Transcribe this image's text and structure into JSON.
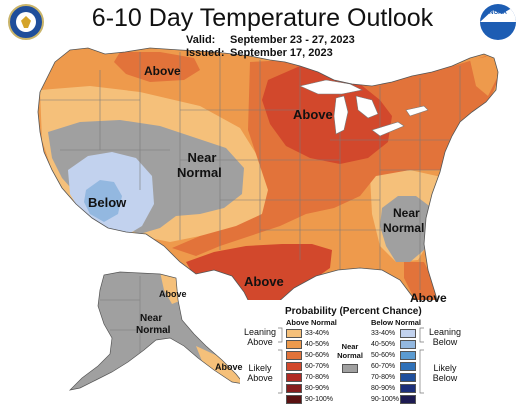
{
  "header": {
    "title": "6-10 Day Temperature Outlook",
    "valid_label": "Valid:",
    "valid_value": "September 23 - 27, 2023",
    "issued_label": "Issued:",
    "issued_value": "September 17, 2023",
    "left_logo_icon": "doc-seal-icon",
    "right_logo_icon": "noaa-logo-icon",
    "right_logo_text": "NOAA"
  },
  "colors": {
    "above_33_40": "#f5c07a",
    "above_40_50": "#ee9a4c",
    "above_50_60": "#e2733a",
    "above_60_70": "#d2482c",
    "above_70_80": "#b02a24",
    "above_80_90": "#861d1d",
    "above_90_100": "#5a1212",
    "near_normal": "#a0a0a0",
    "below_33_40": "#c2d2ee",
    "below_40_50": "#93b8e0",
    "below_50_60": "#5b9bd1",
    "below_60_70": "#2f71b8",
    "below_70_80": "#1f4f9c",
    "below_80_90": "#1c2f7a",
    "below_90_100": "#1d1b52",
    "water": "#ffffff",
    "boundary": "#7a7a7a"
  },
  "map_labels": {
    "northwest_above": "Above",
    "great_lakes_above": "Above",
    "west_near_normal_1": "Near",
    "west_near_normal_2": "Normal",
    "southwest_below": "Below",
    "southeast_near_normal_1": "Near",
    "southeast_near_normal_2": "Normal",
    "texas_above": "Above",
    "florida_above": "Above",
    "alaska_above_north": "Above",
    "alaska_near_normal_1": "Near",
    "alaska_near_normal_2": "Normal",
    "alaska_above_south": "Above"
  },
  "legend": {
    "title": "Probability (Percent Chance)",
    "above_header": "Above Normal",
    "below_header": "Below Normal",
    "near_normal_label_1": "Near",
    "near_normal_label_2": "Normal",
    "leaning_above_1": "Leaning",
    "leaning_above_2": "Above",
    "likely_above_1": "Likely",
    "likely_above_2": "Above",
    "leaning_below_1": "Leaning",
    "leaning_below_2": "Below",
    "likely_below_1": "Likely",
    "likely_below_2": "Below",
    "ranges": [
      "33-40%",
      "40-50%",
      "50-60%",
      "60-70%",
      "70-80%",
      "80-90%",
      "90-100%"
    ]
  }
}
